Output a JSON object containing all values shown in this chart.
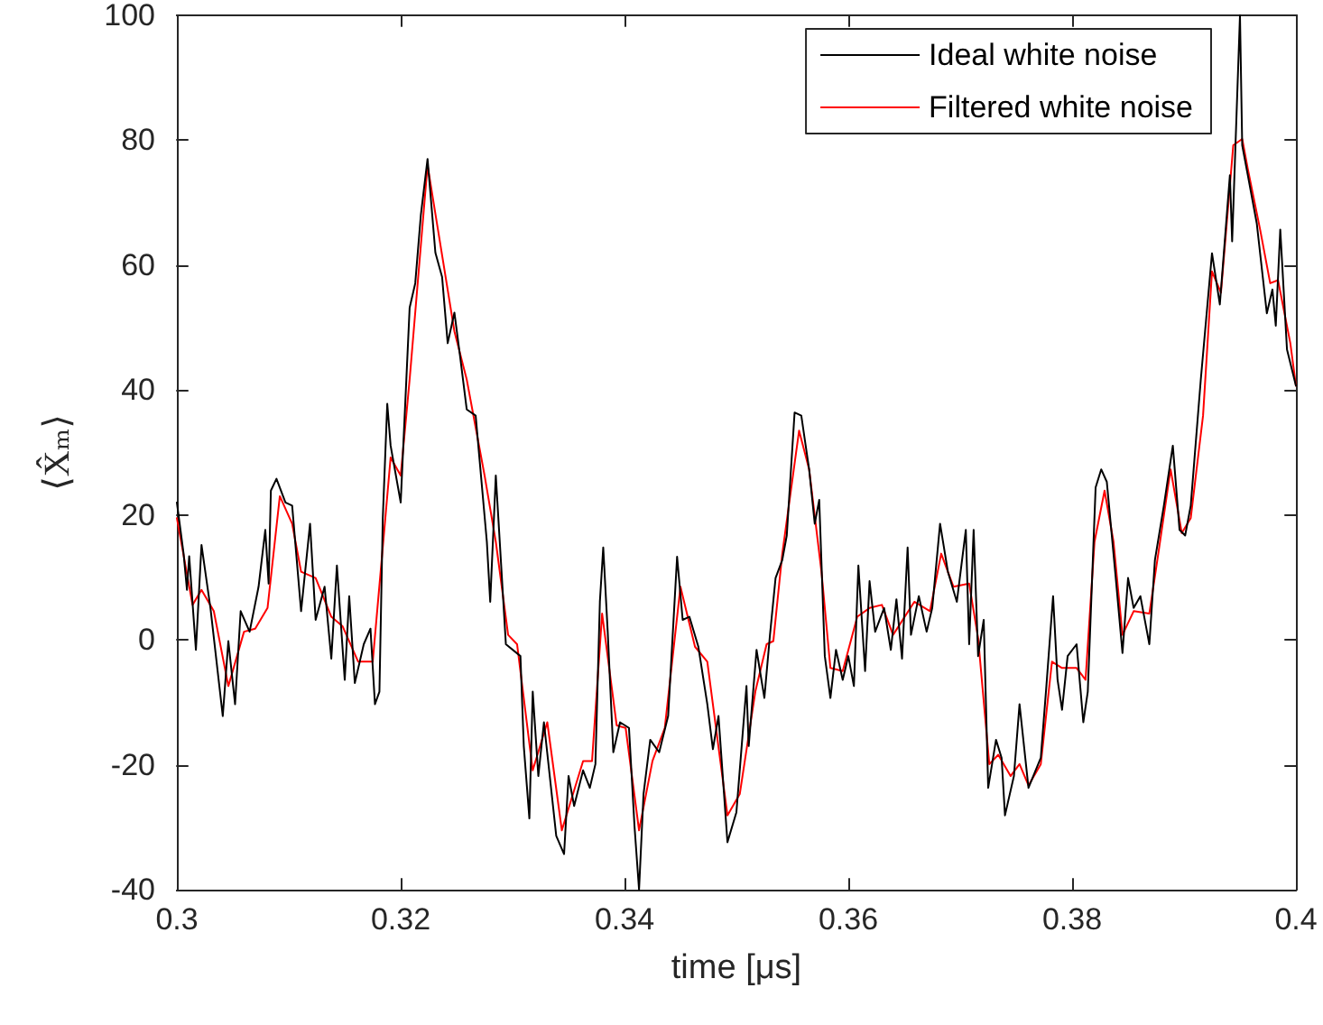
{
  "chart_data": {
    "type": "line",
    "xlabel": "time [μs]",
    "ylabel": "⟨X̂ₘ⟩",
    "xlim": [
      0.3,
      0.4
    ],
    "xticks": [
      0.3,
      0.32,
      0.34,
      0.36,
      0.38,
      0.4
    ],
    "ylim": [
      -40,
      100
    ],
    "yticks": [
      -40,
      -20,
      0,
      20,
      40,
      60,
      80,
      100
    ],
    "grid": false,
    "legend": "top right",
    "marker": "none",
    "line_style": "solid",
    "series": [
      {
        "name": "Ideal white noise",
        "color": "#000000",
        "x": [
          0.3,
          0.3006,
          0.3009,
          0.3011,
          0.3017,
          0.3022,
          0.303,
          0.3041,
          0.3046,
          0.3052,
          0.3057,
          0.3065,
          0.3073,
          0.3079,
          0.3082,
          0.3084,
          0.3089,
          0.3097,
          0.3103,
          0.3111,
          0.3119,
          0.3124,
          0.3132,
          0.3138,
          0.3143,
          0.315,
          0.3154,
          0.3159,
          0.3167,
          0.3173,
          0.3177,
          0.3181,
          0.3184,
          0.3188,
          0.3191,
          0.32,
          0.3208,
          0.3213,
          0.3218,
          0.3224,
          0.3231,
          0.3237,
          0.3242,
          0.3248,
          0.3253,
          0.3259,
          0.3267,
          0.3277,
          0.328,
          0.3285,
          0.3294,
          0.3307,
          0.331,
          0.3315,
          0.3318,
          0.3323,
          0.3328,
          0.3339,
          0.3346,
          0.335,
          0.3355,
          0.3363,
          0.3369,
          0.3374,
          0.3378,
          0.3381,
          0.3385,
          0.339,
          0.3396,
          0.3404,
          0.3409,
          0.3413,
          0.3417,
          0.3423,
          0.3431,
          0.3439,
          0.3447,
          0.3452,
          0.3458,
          0.3466,
          0.3474,
          0.3479,
          0.3484,
          0.3492,
          0.35,
          0.3509,
          0.3511,
          0.3518,
          0.3525,
          0.353,
          0.3535,
          0.3541,
          0.3545,
          0.3552,
          0.3558,
          0.3565,
          0.357,
          0.3574,
          0.3579,
          0.3584,
          0.3589,
          0.3595,
          0.36,
          0.3605,
          0.3609,
          0.3615,
          0.3619,
          0.3624,
          0.3632,
          0.3638,
          0.3643,
          0.3648,
          0.3653,
          0.3656,
          0.3663,
          0.367,
          0.3675,
          0.3682,
          0.3689,
          0.3697,
          0.3705,
          0.3708,
          0.3712,
          0.3716,
          0.3721,
          0.3725,
          0.3732,
          0.3737,
          0.374,
          0.3748,
          0.3753,
          0.3761,
          0.3772,
          0.3777,
          0.3783,
          0.3787,
          0.3791,
          0.3796,
          0.3804,
          0.381,
          0.3814,
          0.3821,
          0.3826,
          0.3831,
          0.3839,
          0.3845,
          0.385,
          0.3855,
          0.3861,
          0.3869,
          0.3874,
          0.3882,
          0.389,
          0.3896,
          0.3901,
          0.3906,
          0.3915,
          0.3925,
          0.3932,
          0.3941,
          0.3943,
          0.395,
          0.3952,
          0.3957,
          0.3965,
          0.3974,
          0.3979,
          0.3982,
          0.3986,
          0.3992,
          0.4
        ],
        "values": [
          22,
          13.8,
          8,
          13.4,
          -1.6,
          15.2,
          5.1,
          -12.2,
          -0.2,
          -10.3,
          4.6,
          1.3,
          8.5,
          17.6,
          9,
          23.9,
          25.8,
          22,
          21.5,
          4.6,
          18.6,
          3.2,
          8.5,
          -3,
          11.9,
          -6.4,
          7,
          -6.9,
          -0.7,
          1.8,
          -10.3,
          -8.3,
          19.5,
          37.8,
          31.1,
          22,
          53.2,
          57.1,
          68,
          77,
          62,
          58.1,
          47.5,
          52.4,
          45.5,
          36.9,
          35.9,
          15.7,
          6.1,
          26.3,
          -0.7,
          -2.6,
          -17,
          -28.6,
          -8.3,
          -21.8,
          -13.2,
          -31.4,
          -34.3,
          -21.8,
          -26.6,
          -20.9,
          -23.7,
          -19.9,
          6.1,
          14.8,
          1.3,
          -18,
          -13.2,
          -14.1,
          -30,
          -40,
          -24.7,
          -16,
          -18,
          -12.2,
          13.3,
          3.2,
          3.7,
          -1.1,
          -10.3,
          -17.5,
          -12.2,
          -32.4,
          -27.6,
          -7.4,
          -17,
          -1.6,
          -9.3,
          0.8,
          9.9,
          12.8,
          16.7,
          36.4,
          35.9,
          27.3,
          18.6,
          22.4,
          -2.6,
          -9.3,
          -1.6,
          -6.4,
          -2.6,
          -7.4,
          11.9,
          -5,
          9.4,
          1.3,
          5.1,
          -1.6,
          6.5,
          -3,
          14.8,
          0.8,
          7,
          1.3,
          5.1,
          18.6,
          10.9,
          6.1,
          17.6,
          -0.7,
          17.6,
          -2.6,
          3.2,
          -23.7,
          -16,
          -18.9,
          -28.1,
          -21.8,
          -10.3,
          -23.7,
          -18.9,
          -7.4,
          7,
          -6.4,
          -11.2,
          -2.6,
          -0.7,
          -13.2,
          -8.3,
          24.4,
          27.3,
          25.3,
          9.9,
          -2.1,
          9.9,
          5.1,
          7,
          -0.7,
          12.8,
          21.5,
          31.1,
          17.6,
          16.7,
          21.5,
          41.7,
          61.9,
          53.7,
          74.4,
          63.8,
          100,
          79.2,
          74.4,
          66.7,
          52.3,
          56.1,
          50.3,
          65.7,
          46.5,
          40.7
        ]
      },
      {
        "name": "Filtered white noise",
        "color": "#ff0000",
        "x": [
          0.3,
          0.3014,
          0.3022,
          0.3033,
          0.3046,
          0.306,
          0.307,
          0.3081,
          0.3092,
          0.3103,
          0.3111,
          0.3124,
          0.3138,
          0.3148,
          0.3162,
          0.3175,
          0.3183,
          0.3191,
          0.32,
          0.3208,
          0.3224,
          0.3248,
          0.3259,
          0.3275,
          0.3285,
          0.3296,
          0.3304,
          0.3318,
          0.3331,
          0.3344,
          0.3363,
          0.3371,
          0.338,
          0.3393,
          0.3401,
          0.3413,
          0.3425,
          0.3436,
          0.345,
          0.3463,
          0.3474,
          0.3492,
          0.3503,
          0.3517,
          0.3527,
          0.3533,
          0.3541,
          0.3556,
          0.3565,
          0.3576,
          0.3584,
          0.3595,
          0.3608,
          0.3619,
          0.363,
          0.364,
          0.3659,
          0.3673,
          0.3683,
          0.3694,
          0.3708,
          0.3716,
          0.3726,
          0.3734,
          0.3745,
          0.3753,
          0.3761,
          0.3772,
          0.3782,
          0.3791,
          0.3804,
          0.3812,
          0.382,
          0.3829,
          0.3837,
          0.3845,
          0.3855,
          0.3869,
          0.3877,
          0.3888,
          0.3898,
          0.3906,
          0.3917,
          0.3925,
          0.3933,
          0.3944,
          0.3952,
          0.3957,
          0.3968,
          0.3977,
          0.3984,
          0.3995,
          0.4
        ],
        "values": [
          19.5,
          5.6,
          8,
          4.6,
          -7.4,
          1.3,
          1.8,
          5.1,
          23,
          18.6,
          10.9,
          9.9,
          3.7,
          2.2,
          -3.5,
          -3.5,
          12.8,
          29.2,
          26.3,
          41.7,
          76,
          49.4,
          41.7,
          26.3,
          15.7,
          0.8,
          -0.7,
          -20.9,
          -13.2,
          -30.5,
          -19.4,
          -19.4,
          4.2,
          -13.7,
          -14.1,
          -30.5,
          -19.4,
          -14.1,
          8.5,
          -1.1,
          -3.5,
          -28.1,
          -24.7,
          -8.2,
          -0.7,
          -0.2,
          13.8,
          33.5,
          27.3,
          10.9,
          -4.5,
          -5,
          3.7,
          5.1,
          5.6,
          0.8,
          6.1,
          4.6,
          13.8,
          8.5,
          9,
          0.3,
          -19.9,
          -18.4,
          -21.8,
          -19.9,
          -23.3,
          -19.9,
          -3.5,
          -4.5,
          -4.5,
          -6.4,
          15.7,
          23.9,
          15.7,
          0.8,
          4.6,
          4.2,
          13.8,
          27.3,
          17.1,
          19.5,
          35.9,
          59,
          55.6,
          79.2,
          80.2,
          75.4,
          65.7,
          57.1,
          57.6,
          47.5,
          40.7
        ]
      }
    ]
  }
}
